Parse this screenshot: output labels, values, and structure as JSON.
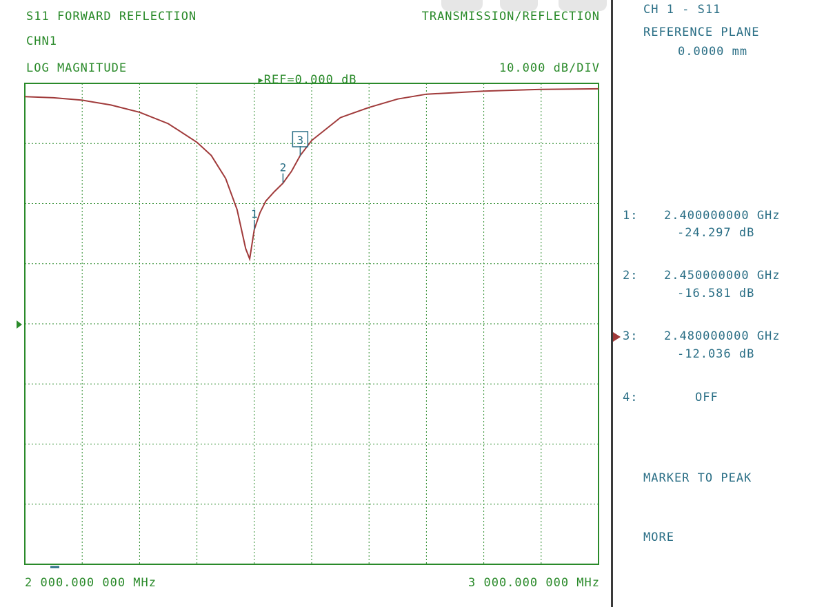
{
  "header": {
    "title": "S11 FORWARD REFLECTION",
    "channel": "CHN1",
    "mode": "TRANSMISSION/REFLECTION",
    "format": "LOG MAGNITUDE",
    "ref": "REF=0.000 dB",
    "scale": "10.000 dB/DIV"
  },
  "footer": {
    "start": "2 000.000 000 MHz",
    "stop": "3 000.000 000 MHz"
  },
  "side_panel": {
    "channel_param": "CH 1 - S11",
    "ref_plane_label": "REFERENCE PLANE",
    "ref_plane_value": "0.0000 mm",
    "markers": [
      {
        "index": "1:",
        "freq": "2.400000000 GHz",
        "value": "-24.297 dB"
      },
      {
        "index": "2:",
        "freq": "2.450000000 GHz",
        "value": "-16.581 dB"
      },
      {
        "index": "3:",
        "freq": "2.480000000 GHz",
        "value": "-12.036 dB"
      },
      {
        "index": "4:",
        "freq": "OFF",
        "value": ""
      }
    ],
    "softkeys": [
      "MARKER TO PEAK",
      "MORE"
    ]
  },
  "colors": {
    "grid": "#2a8a2a",
    "trace": "#a03a3a",
    "marker": "#2b6f86",
    "divider": "#3a3a3a"
  },
  "chart_data": {
    "type": "line",
    "x_unit": "MHz",
    "xlim": [
      2000,
      3000
    ],
    "ylim": [
      -80,
      0
    ],
    "ref_level_db": 0,
    "db_per_div": 10,
    "grid": true,
    "x": [
      2000,
      2050,
      2100,
      2150,
      2200,
      2250,
      2300,
      2325,
      2350,
      2370,
      2385,
      2392,
      2400,
      2410,
      2420,
      2435,
      2450,
      2465,
      2480,
      2500,
      2550,
      2600,
      2650,
      2700,
      2800,
      2900,
      3000
    ],
    "series": [
      {
        "values": [
          -2.2,
          -2.4,
          -2.8,
          -3.6,
          -4.8,
          -6.7,
          -9.8,
          -12.0,
          -15.8,
          -21.0,
          -27.5,
          -29.2,
          -24.3,
          -21.5,
          -19.6,
          -18.0,
          -16.6,
          -14.6,
          -12.0,
          -9.5,
          -5.7,
          -4.0,
          -2.6,
          -1.8,
          -1.3,
          -1.0,
          -0.9
        ]
      }
    ],
    "markers": [
      {
        "label": "1",
        "x": 2400,
        "y": -24.297,
        "active": false
      },
      {
        "label": "2",
        "x": 2450,
        "y": -16.581,
        "active": false
      },
      {
        "label": "3",
        "x": 2480,
        "y": -12.036,
        "active": true
      }
    ]
  }
}
